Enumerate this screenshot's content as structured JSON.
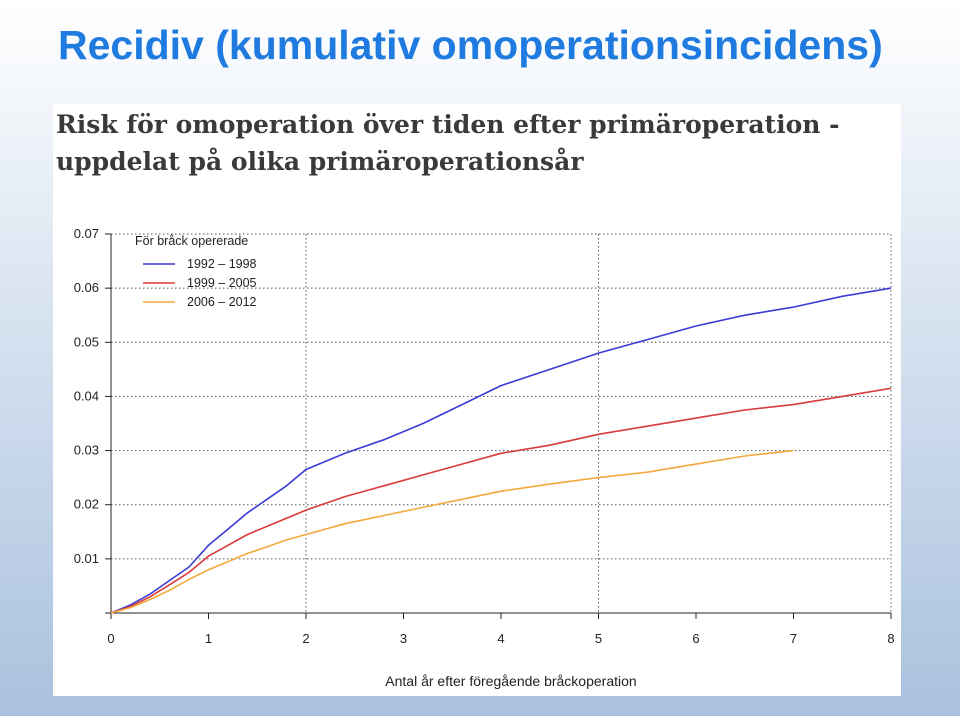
{
  "slide": {
    "title": "Recidiv (kumulativ omoperationsincidens)"
  },
  "chart_data": {
    "type": "line",
    "title_lines": [
      "Risk för omoperation över tiden efter primäroperation -",
      "uppdelat på olika primäroperationsår"
    ],
    "xlabel": "Antal år efter föregående bråckoperation",
    "ylabel": "",
    "xlim": [
      0,
      8
    ],
    "ylim": [
      0,
      0.07
    ],
    "x_ticks": [
      "0",
      "1",
      "2",
      "3",
      "4",
      "5",
      "6",
      "7",
      "8"
    ],
    "y_ticks": [
      "0.01",
      "0.02",
      "0.03",
      "0.04",
      "0.05",
      "0.06",
      "0.07"
    ],
    "grid": "dotted, at x = 2, 5, 8 and at every y tick",
    "legend": {
      "title": "För bråck opererade",
      "placement": "top-left"
    },
    "series": [
      {
        "name": "1992 – 1998",
        "color": "#3b3bd6",
        "x": [
          0,
          0.2,
          0.4,
          0.6,
          0.8,
          1.0,
          1.2,
          1.4,
          1.6,
          1.8,
          2.0,
          2.4,
          2.8,
          3.2,
          3.6,
          4.0,
          4.5,
          5.0,
          5.5,
          6.0,
          6.5,
          7.0,
          7.5,
          8.0
        ],
        "values": [
          0,
          0.0015,
          0.0035,
          0.006,
          0.0085,
          0.0125,
          0.0155,
          0.0185,
          0.021,
          0.0235,
          0.0265,
          0.0295,
          0.032,
          0.035,
          0.0385,
          0.042,
          0.045,
          0.048,
          0.0505,
          0.053,
          0.055,
          0.0565,
          0.0585,
          0.06
        ]
      },
      {
        "name": "1999 – 2005",
        "color": "#d93a3a",
        "x": [
          0,
          0.2,
          0.4,
          0.6,
          0.8,
          1.0,
          1.2,
          1.4,
          1.6,
          1.8,
          2.0,
          2.4,
          2.8,
          3.2,
          3.6,
          4.0,
          4.5,
          5.0,
          5.5,
          6.0,
          6.5,
          7.0,
          7.5,
          8.0
        ],
        "values": [
          0,
          0.0012,
          0.003,
          0.0052,
          0.0075,
          0.0105,
          0.0125,
          0.0145,
          0.016,
          0.0175,
          0.019,
          0.0215,
          0.0235,
          0.0255,
          0.0275,
          0.0295,
          0.031,
          0.033,
          0.0345,
          0.036,
          0.0375,
          0.0385,
          0.04,
          0.0415
        ]
      },
      {
        "name": "2006 – 2012",
        "color": "#f2a93b",
        "x": [
          0,
          0.2,
          0.4,
          0.6,
          0.8,
          1.0,
          1.2,
          1.4,
          1.6,
          1.8,
          2.0,
          2.4,
          2.8,
          3.2,
          3.6,
          4.0,
          4.5,
          5.0,
          5.5,
          6.0,
          6.5,
          7.0
        ],
        "values": [
          0,
          0.001,
          0.0025,
          0.0042,
          0.0062,
          0.008,
          0.0095,
          0.011,
          0.0122,
          0.0135,
          0.0145,
          0.0165,
          0.018,
          0.0195,
          0.021,
          0.0225,
          0.0238,
          0.025,
          0.026,
          0.0275,
          0.029,
          0.03
        ]
      }
    ]
  }
}
